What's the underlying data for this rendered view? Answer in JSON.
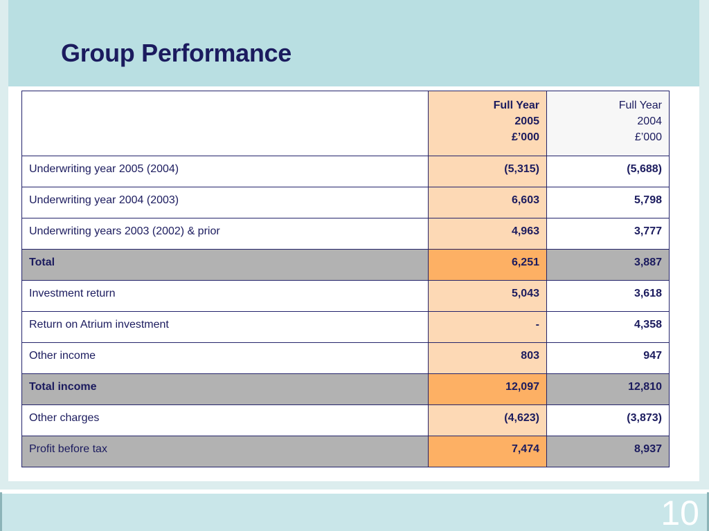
{
  "slide": {
    "title": "Group Performance",
    "page_number": "10"
  },
  "table": {
    "header": {
      "col_2005": [
        "Full Year",
        "2005",
        "£’000"
      ],
      "col_2004": [
        "Full Year",
        "2004",
        "£’000"
      ]
    },
    "rows": [
      {
        "label": "Underwriting year 2005 (2004)",
        "fy2005": "(5,315)",
        "fy2004": "(5,688)"
      },
      {
        "label": "Underwriting year 2004 (2003)",
        "fy2005": "6,603",
        "fy2004": "5,798"
      },
      {
        "label": "Underwriting years 2003 (2002) & prior",
        "fy2005": "4,963",
        "fy2004": "3,777"
      },
      {
        "label": "Total",
        "fy2005": "6,251",
        "fy2004": "3,887"
      },
      {
        "label": "Investment return",
        "fy2005": "5,043",
        "fy2004": "3,618"
      },
      {
        "label": "Return on Atrium investment",
        "fy2005": "-",
        "fy2004": "4,358"
      },
      {
        "label": "Other income",
        "fy2005": "803",
        "fy2004": "947"
      },
      {
        "label": "Total income",
        "fy2005": "12,097",
        "fy2004": "12,810"
      },
      {
        "label": "Other charges",
        "fy2005": "(4,623)",
        "fy2004": "(3,873)"
      },
      {
        "label": "Profit before tax",
        "fy2005": "7,474",
        "fy2004": "8,937"
      }
    ]
  },
  "colors": {
    "title_band": "#b9dfe2",
    "footer_band": "#c9e6e9",
    "text_navy": "#1b1b5e",
    "col_2005_light": "#fdd9b5",
    "col_2005_dark": "#fdb064",
    "row_shade_grey": "#b2b2b2"
  }
}
